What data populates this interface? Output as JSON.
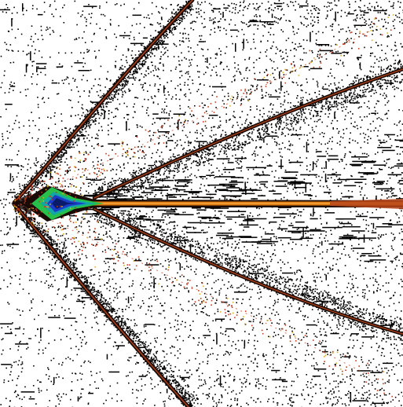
{
  "image": {
    "background_color": "#ffffff",
    "noise_color": "#000000",
    "colors": {
      "stroke_dark": "#1a0a05",
      "stroke_rust": "#b5451b",
      "core_orange": "#e07a10",
      "core_orange_light": "#f3a33c",
      "core_green": "#27c04a",
      "core_teal": "#13a6a6",
      "core_blue": "#1b3cc8",
      "core_navy": "#0a1a6a",
      "speckle_red": "#c83a1a",
      "speckle_yellow": "#d8b020"
    }
  }
}
